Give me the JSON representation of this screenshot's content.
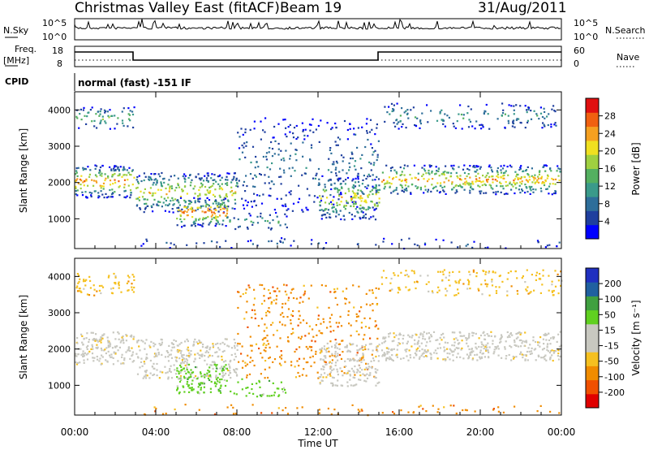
{
  "header": {
    "title": "Christmas Valley East (fitACF)",
    "beam": "Beam 19",
    "date": "31/Aug/2011"
  },
  "strips": {
    "nsky_label": "N.Sky",
    "nsky_ticks": [
      "10^5",
      "10^0"
    ],
    "nsearch_label": "N.Search",
    "nsearch_ticks": [
      "10^5",
      "10^0"
    ],
    "freq_label": "Freq.",
    "freq_units": "[MHz]",
    "freq_ticks": [
      "18",
      "8"
    ],
    "nave_label": "Nave",
    "nave_ticks": [
      "60",
      "0"
    ],
    "cpid_label": "CPID",
    "cpid_text": "normal (fast) -151 IF"
  },
  "colors": {
    "power": [
      "#0000ff",
      "#1f3f9e",
      "#2e6e9a",
      "#3a9a8a",
      "#54b060",
      "#9fd040",
      "#f0e020",
      "#f5a020",
      "#f06010",
      "#e01010"
    ],
    "velocity": [
      "#e00000",
      "#f05000",
      "#f08c00",
      "#f5c020",
      "#c8c8c0",
      "#c8c8c0",
      "#60d020",
      "#40a040",
      "#2060a0",
      "#2030c0"
    ]
  },
  "chart_data": [
    {
      "type": "heatmap",
      "name": "power",
      "ylabel": "Slant Range [km]",
      "colorbar_label": "Power [dB]",
      "colorbar_ticks": [
        "28",
        "24",
        "20",
        "16",
        "12",
        "8",
        "4"
      ],
      "ylim": [
        180,
        4500
      ],
      "y_ticks": [
        "4000",
        "3000",
        "2000",
        "1000"
      ],
      "y_tick_values": [
        4000,
        3000,
        2000,
        1000
      ],
      "xlim_hours": [
        0,
        24
      ],
      "x_ticks": [
        "00:00",
        "04:00",
        "08:00",
        "12:00",
        "16:00",
        "20:00",
        "00:00"
      ],
      "data_gap_hours": [
        2.9,
        15.1
      ]
    },
    {
      "type": "heatmap",
      "name": "velocity",
      "ylabel": "Slant Range [km]",
      "colorbar_label": "Velocity [m s⁻¹]",
      "colorbar_ticks": [
        "200",
        "100",
        "50",
        "15",
        "-15",
        "-50",
        "-100",
        "-200"
      ],
      "ylim": [
        180,
        4500
      ],
      "y_ticks": [
        "4000",
        "3000",
        "2000",
        "1000"
      ],
      "y_tick_values": [
        4000,
        3000,
        2000,
        1000
      ],
      "xlim_hours": [
        0,
        24
      ],
      "x_ticks": [
        "00:00",
        "04:00",
        "08:00",
        "12:00",
        "16:00",
        "20:00",
        "00:00"
      ],
      "xlabel": "Time UT"
    }
  ]
}
